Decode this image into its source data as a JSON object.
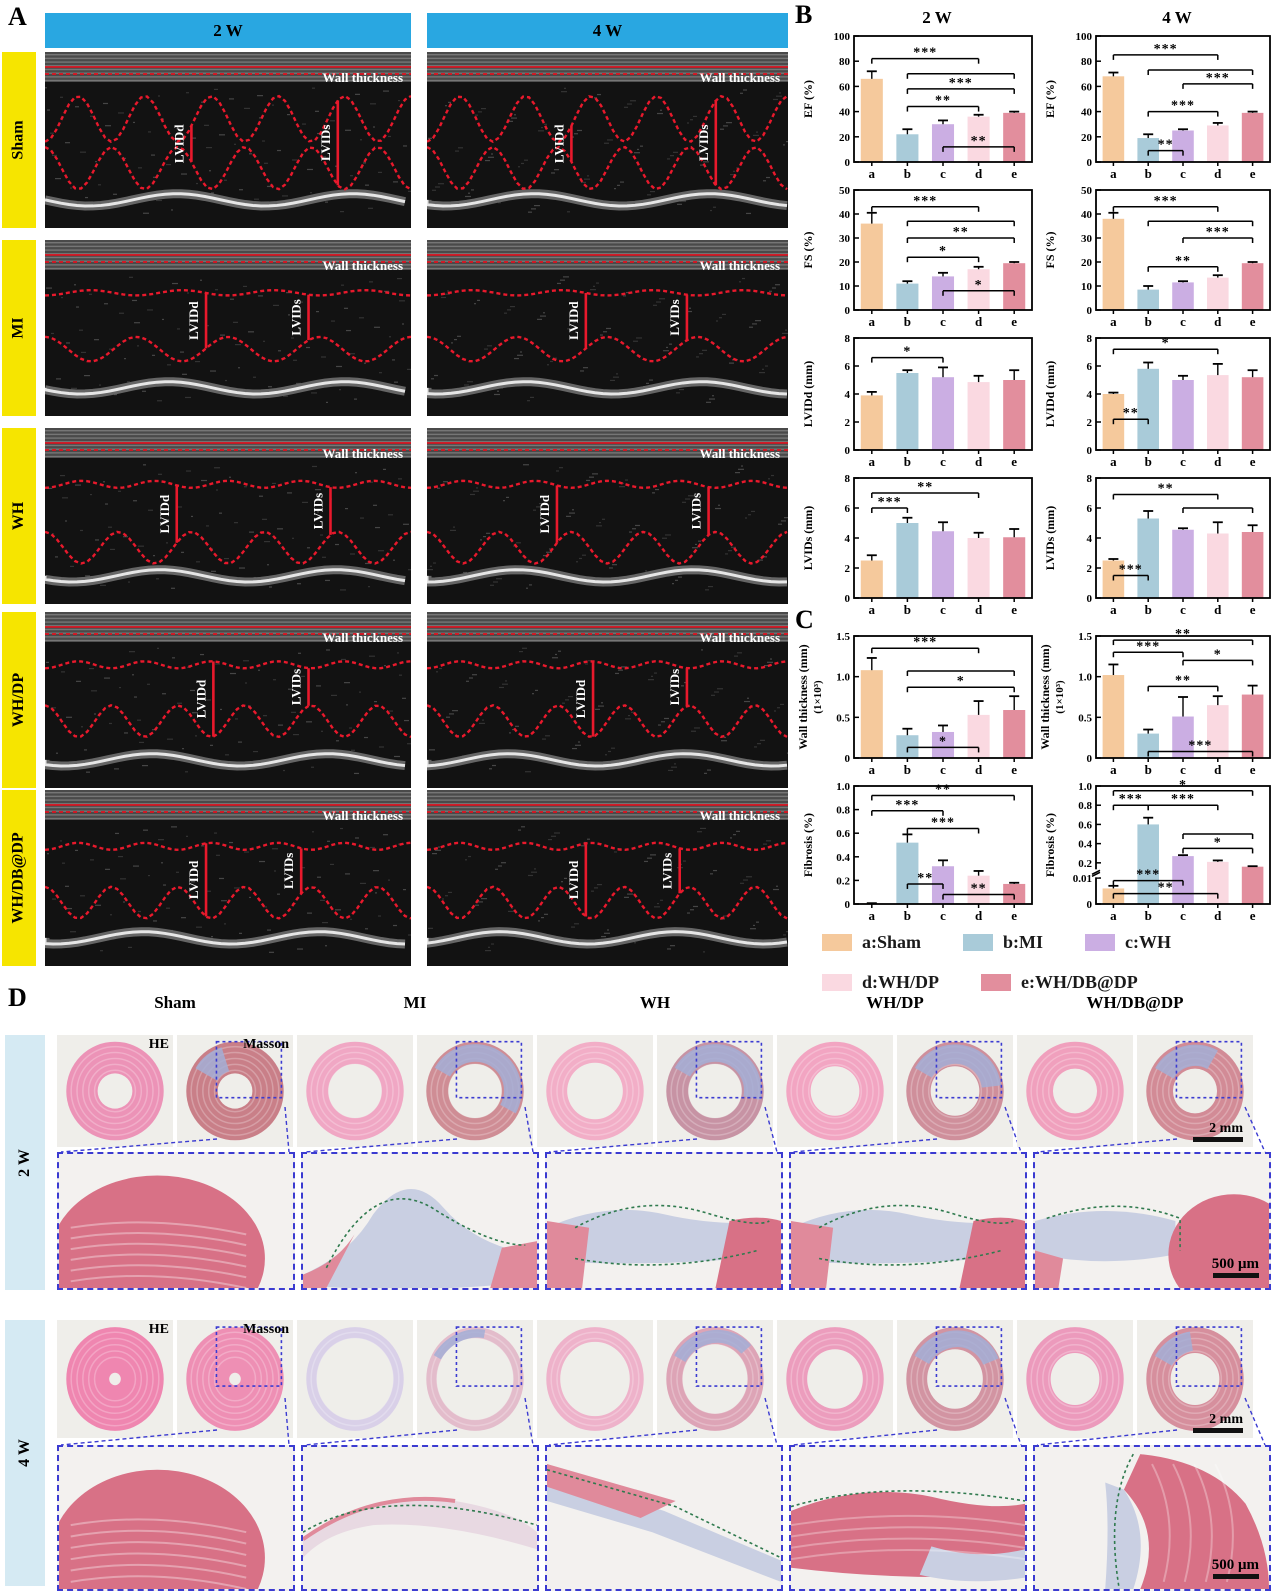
{
  "panelA": {
    "label": "A",
    "col_headers": [
      "2 W",
      "4 W"
    ],
    "rows": [
      {
        "label": "Sham"
      },
      {
        "label": "MI"
      },
      {
        "label": "WH"
      },
      {
        "label": "WH/DP"
      },
      {
        "label": "WH/DB@DP"
      }
    ],
    "annotations": {
      "wall": "Wall thickness",
      "lvidd": "LVIDd",
      "lvids": "LVIDs"
    }
  },
  "panelB": {
    "label": "B",
    "col_titles": [
      "2 W",
      "4 W"
    ]
  },
  "panelC": {
    "label": "C"
  },
  "legend": {
    "items": [
      {
        "key": "a:Sham",
        "color": "#f5c99c"
      },
      {
        "key": "b:MI",
        "color": "#a9cbd9"
      },
      {
        "key": "c:WH",
        "color": "#cbaee3"
      },
      {
        "key": "d:WH/DP",
        "color": "#fad9e1"
      },
      {
        "key": "e:WH/DB@DP",
        "color": "#e28e9d"
      }
    ]
  },
  "chart_data": [
    {
      "id": "ef-2w",
      "type": "bar",
      "week": "2 W",
      "ylabel": "EF (%)",
      "ylim": [
        0,
        100
      ],
      "yticks": [
        0,
        20,
        40,
        60,
        80,
        100
      ],
      "categories": [
        "a",
        "b",
        "c",
        "d",
        "e"
      ],
      "values": [
        66,
        22,
        30,
        36,
        39
      ],
      "errors": [
        6,
        4,
        3,
        1.5,
        1
      ],
      "sig": [
        {
          "from": 0,
          "to": 3,
          "y": 82,
          "label": "***"
        },
        {
          "from": 1,
          "to": 4,
          "y": 70,
          "label": ""
        },
        {
          "from": 1,
          "to": 4,
          "y": 58,
          "label": "***"
        },
        {
          "from": 1,
          "to": 3,
          "y": 44,
          "label": "**"
        },
        {
          "from": 2,
          "to": 4,
          "y": 12,
          "label": "**"
        }
      ]
    },
    {
      "id": "ef-4w",
      "type": "bar",
      "week": "4 W",
      "ylabel": "EF (%)",
      "ylim": [
        0,
        100
      ],
      "yticks": [
        0,
        20,
        40,
        60,
        80,
        100
      ],
      "categories": [
        "a",
        "b",
        "c",
        "d",
        "e"
      ],
      "values": [
        68,
        19,
        25,
        29,
        39
      ],
      "errors": [
        3,
        3,
        1,
        2,
        1
      ],
      "sig": [
        {
          "from": 0,
          "to": 3,
          "y": 85,
          "label": "***"
        },
        {
          "from": 1,
          "to": 4,
          "y": 73,
          "label": ""
        },
        {
          "from": 2,
          "to": 4,
          "y": 62,
          "label": "***"
        },
        {
          "from": 1,
          "to": 3,
          "y": 40,
          "label": "***"
        },
        {
          "from": 1,
          "to": 2,
          "y": 9,
          "label": "**"
        }
      ]
    },
    {
      "id": "fs-2w",
      "type": "bar",
      "week": "2 W",
      "ylabel": "FS (%)",
      "ylim": [
        0,
        50
      ],
      "yticks": [
        0,
        10,
        20,
        30,
        40,
        50
      ],
      "categories": [
        "a",
        "b",
        "c",
        "d",
        "e"
      ],
      "values": [
        36,
        11,
        14,
        17,
        19.5
      ],
      "errors": [
        4.5,
        1,
        1.5,
        1,
        0.5
      ],
      "sig": [
        {
          "from": 0,
          "to": 3,
          "y": 43,
          "label": "***"
        },
        {
          "from": 1,
          "to": 4,
          "y": 37,
          "label": ""
        },
        {
          "from": 1,
          "to": 4,
          "y": 30,
          "label": "**"
        },
        {
          "from": 1,
          "to": 3,
          "y": 22,
          "label": "*"
        },
        {
          "from": 2,
          "to": 4,
          "y": 8,
          "label": "*"
        }
      ]
    },
    {
      "id": "fs-4w",
      "type": "bar",
      "week": "4 W",
      "ylabel": "FS (%)",
      "ylim": [
        0,
        50
      ],
      "yticks": [
        0,
        10,
        20,
        30,
        40,
        50
      ],
      "categories": [
        "a",
        "b",
        "c",
        "d",
        "e"
      ],
      "values": [
        38,
        8.5,
        11.5,
        13.5,
        19.5
      ],
      "errors": [
        2.5,
        1.5,
        0.5,
        1,
        0.5
      ],
      "sig": [
        {
          "from": 0,
          "to": 3,
          "y": 43,
          "label": "***"
        },
        {
          "from": 1,
          "to": 4,
          "y": 37,
          "label": ""
        },
        {
          "from": 2,
          "to": 4,
          "y": 30,
          "label": "***"
        },
        {
          "from": 1,
          "to": 3,
          "y": 18,
          "label": "**"
        }
      ]
    },
    {
      "id": "lvidd-2w",
      "type": "bar",
      "week": "2 W",
      "ylabel": "LVIDd (mm)",
      "ylim": [
        0,
        8
      ],
      "yticks": [
        0,
        2,
        4,
        6,
        8
      ],
      "categories": [
        "a",
        "b",
        "c",
        "d",
        "e"
      ],
      "values": [
        3.9,
        5.5,
        5.2,
        4.85,
        5.0
      ],
      "errors": [
        0.25,
        0.2,
        0.7,
        0.45,
        0.7
      ],
      "sig": [
        {
          "from": 0,
          "to": 2,
          "y": 6.6,
          "label": "*"
        }
      ]
    },
    {
      "id": "lvidd-4w",
      "type": "bar",
      "week": "4 W",
      "ylabel": "LVIDd (mm)",
      "ylim": [
        0,
        8
      ],
      "yticks": [
        0,
        2,
        4,
        6,
        8
      ],
      "categories": [
        "a",
        "b",
        "c",
        "d",
        "e"
      ],
      "values": [
        4.0,
        5.8,
        5.0,
        5.35,
        5.2
      ],
      "errors": [
        0.1,
        0.45,
        0.3,
        0.8,
        0.5
      ],
      "sig": [
        {
          "from": 0,
          "to": 3,
          "y": 7.2,
          "label": "*"
        },
        {
          "from": 0,
          "to": 1,
          "y": 2.2,
          "label": "**"
        }
      ]
    },
    {
      "id": "lvids-2w",
      "type": "bar",
      "week": "2 W",
      "ylabel": "LVIDs (mm)",
      "ylim": [
        0,
        8
      ],
      "yticks": [
        0,
        2,
        4,
        6,
        8
      ],
      "categories": [
        "a",
        "b",
        "c",
        "d",
        "e"
      ],
      "values": [
        2.5,
        5.0,
        4.45,
        4.0,
        4.05
      ],
      "errors": [
        0.35,
        0.35,
        0.6,
        0.35,
        0.55
      ],
      "sig": [
        {
          "from": 0,
          "to": 3,
          "y": 7.0,
          "label": "**"
        },
        {
          "from": 0,
          "to": 1,
          "y": 6.0,
          "label": "***"
        }
      ]
    },
    {
      "id": "lvids-4w",
      "type": "bar",
      "week": "4 W",
      "ylabel": "LVIDs (mm)",
      "ylim": [
        0,
        8
      ],
      "yticks": [
        0,
        2,
        4,
        6,
        8
      ],
      "categories": [
        "a",
        "b",
        "c",
        "d",
        "e"
      ],
      "values": [
        2.5,
        5.3,
        4.55,
        4.3,
        4.4
      ],
      "errors": [
        0.1,
        0.5,
        0.1,
        0.75,
        0.45
      ],
      "sig": [
        {
          "from": 0,
          "to": 3,
          "y": 6.9,
          "label": "**"
        },
        {
          "from": 2,
          "to": 4,
          "y": 6.0,
          "label": ""
        },
        {
          "from": 0,
          "to": 1,
          "y": 1.5,
          "label": "***"
        }
      ]
    },
    {
      "id": "wall-2w",
      "type": "bar",
      "week": "2 W",
      "ylabel": "Wall thickness (mm)",
      "ylabel2": "(1×10³)",
      "ylim": [
        0,
        1.5
      ],
      "yticks": [
        0,
        0.5,
        1.0,
        1.5
      ],
      "yticklabels": [
        "0",
        "0.5",
        "1.0",
        "1.5"
      ],
      "categories": [
        "a",
        "b",
        "c",
        "d",
        "e"
      ],
      "values": [
        1.08,
        0.28,
        0.32,
        0.53,
        0.59
      ],
      "errors": [
        0.15,
        0.08,
        0.08,
        0.17,
        0.17
      ],
      "sig": [
        {
          "from": 0,
          "to": 3,
          "y": 1.35,
          "label": "***"
        },
        {
          "from": 1,
          "to": 4,
          "y": 1.07,
          "label": ""
        },
        {
          "from": 1,
          "to": 4,
          "y": 0.87,
          "label": "*"
        },
        {
          "from": 1,
          "to": 3,
          "y": 0.13,
          "label": "*"
        }
      ]
    },
    {
      "id": "wall-4w",
      "type": "bar",
      "week": "4 W",
      "ylabel": "Wall thickness (mm)",
      "ylabel2": "(1×10³)",
      "ylim": [
        0,
        1.5
      ],
      "yticks": [
        0,
        0.5,
        1.0,
        1.5
      ],
      "yticklabels": [
        "0",
        "0.5",
        "1.0",
        "1.5"
      ],
      "categories": [
        "a",
        "b",
        "c",
        "d",
        "e"
      ],
      "values": [
        1.02,
        0.3,
        0.51,
        0.65,
        0.78
      ],
      "errors": [
        0.13,
        0.05,
        0.24,
        0.11,
        0.11
      ],
      "sig": [
        {
          "from": 0,
          "to": 4,
          "y": 1.45,
          "label": "**"
        },
        {
          "from": 0,
          "to": 2,
          "y": 1.3,
          "label": "***"
        },
        {
          "from": 2,
          "to": 4,
          "y": 1.2,
          "label": "*"
        },
        {
          "from": 1,
          "to": 3,
          "y": 0.88,
          "label": "**"
        },
        {
          "from": 1,
          "to": 4,
          "y": 0.08,
          "label": "***"
        }
      ]
    },
    {
      "id": "fib-2w",
      "type": "bar",
      "week": "2 W",
      "ylabel": "Fibrosis (%)",
      "ylim": [
        0,
        1.0
      ],
      "yticks": [
        0,
        0.2,
        0.4,
        0.6,
        0.8,
        1.0
      ],
      "yticklabels": [
        "0",
        "0.2",
        "0.4",
        "0.6",
        "0.8",
        "1.0"
      ],
      "categories": [
        "a",
        "b",
        "c",
        "d",
        "e"
      ],
      "values": [
        0.005,
        0.52,
        0.32,
        0.24,
        0.17
      ],
      "errors": [
        0.002,
        0.07,
        0.05,
        0.04,
        0.01
      ],
      "sig": [
        {
          "from": 0,
          "to": 4,
          "y": 0.92,
          "label": "**"
        },
        {
          "from": 0,
          "to": 2,
          "y": 0.79,
          "label": "***"
        },
        {
          "from": 1,
          "to": 3,
          "y": 0.64,
          "label": "***"
        },
        {
          "from": 1,
          "to": 2,
          "y": 0.17,
          "label": "**"
        },
        {
          "from": 2,
          "to": 4,
          "y": 0.08,
          "label": "**"
        }
      ]
    },
    {
      "id": "fib-4w",
      "type": "bar",
      "week": "4 W",
      "ylabel": "Fibrosis (%)",
      "ylim": [
        0,
        1.0
      ],
      "yticks": [
        0,
        0.01,
        0.2,
        0.4,
        0.6,
        0.8,
        1.0
      ],
      "yticklabels": [
        "0",
        "0.01",
        "0.2",
        "0.4",
        "0.6",
        "0.8",
        "1.0"
      ],
      "axis_break": {
        "low_max": 0.01,
        "low_frac": 0.22,
        "up_min": 0.14,
        "up_frac": 0.3
      },
      "categories": [
        "a",
        "b",
        "c",
        "d",
        "e"
      ],
      "values": [
        0.006,
        0.6,
        0.27,
        0.21,
        0.16
      ],
      "errors": [
        0.001,
        0.07,
        0.01,
        0.015,
        0.005
      ],
      "sig": [
        {
          "from": 0,
          "to": 4,
          "y": 0.95,
          "label": "*"
        },
        {
          "from": 0,
          "to": 1,
          "y": 0.8,
          "label": "***"
        },
        {
          "from": 1,
          "to": 3,
          "y": 0.8,
          "label": "***"
        },
        {
          "from": 2,
          "to": 4,
          "y": 0.5,
          "label": ""
        },
        {
          "from": 2,
          "to": 4,
          "y": 0.35,
          "label": "*"
        },
        {
          "from": 0,
          "to": 2,
          "y": 0.009,
          "label": "***"
        },
        {
          "from": 0,
          "to": 3,
          "y": 0.004,
          "label": "**"
        }
      ]
    }
  ],
  "panelD": {
    "label": "D",
    "col_headers": [
      "Sham",
      "MI",
      "WH",
      "WH/DP",
      "WH/DB@DP"
    ],
    "row_labels": [
      "2 W",
      "4 W"
    ],
    "stain_labels": [
      "HE",
      "Masson"
    ],
    "scalebar_top": "2 mm",
    "scalebar_zoom": "500 μm",
    "histology": {
      "w2": [
        {
          "he": {
            "c": "#ec93b7",
            "lum": 0.15,
            "blue": 0
          },
          "ma": {
            "c": "#c97f88",
            "lum": 0.15,
            "blue": 0.12
          },
          "zoom": "full-pink"
        },
        {
          "he": {
            "c": "#f0a7c4",
            "lum": 0.23,
            "blue": 0
          },
          "ma": {
            "c": "#cf8d95",
            "lum": 0.23,
            "blue": 0.5
          },
          "zoom": "thin-infarct"
        },
        {
          "he": {
            "c": "#f2aec7",
            "lum": 0.24,
            "blue": 0
          },
          "ma": {
            "c": "#c793a4",
            "lum": 0.23,
            "blue": 0.45
          },
          "zoom": "band-infarct"
        },
        {
          "he": {
            "c": "#f2a5c2",
            "lum": 0.21,
            "blue": 0
          },
          "ma": {
            "c": "#cf8f9b",
            "lum": 0.21,
            "blue": 0.4
          },
          "zoom": "band-infarct"
        },
        {
          "he": {
            "c": "#f0a0bd",
            "lum": 0.19,
            "blue": 0
          },
          "ma": {
            "c": "#d28b96",
            "lum": 0.19,
            "blue": 0.25
          },
          "zoom": "thick-right"
        }
      ],
      "w4": [
        {
          "he": {
            "c": "#ef86b0",
            "lum": 0.05,
            "blue": 0
          },
          "ma": {
            "c": "#ee8fb4",
            "lum": 0.05,
            "blue": 0
          },
          "zoom": "full-pink-round"
        },
        {
          "he": {
            "c": "#d9d0e8",
            "lum": 0.33,
            "blue": 0
          },
          "ma": {
            "c": "#e3bccb",
            "lum": 0.33,
            "blue": 0.2
          },
          "zoom": "thin-band"
        },
        {
          "he": {
            "c": "#eeb2ca",
            "lum": 0.3,
            "blue": 0
          },
          "ma": {
            "c": "#dda4b6",
            "lum": 0.28,
            "blue": 0.3
          },
          "zoom": "diag-band"
        },
        {
          "he": {
            "c": "#ec9dbd",
            "lum": 0.24,
            "blue": 0
          },
          "ma": {
            "c": "#d294a2",
            "lum": 0.24,
            "blue": 0.35
          },
          "zoom": "thick-band"
        },
        {
          "he": {
            "c": "#ec9abc",
            "lum": 0.21,
            "blue": 0
          },
          "ma": {
            "c": "#d68f9d",
            "lum": 0.21,
            "blue": 0.15
          },
          "zoom": "thick-wall-curve"
        }
      ]
    }
  }
}
